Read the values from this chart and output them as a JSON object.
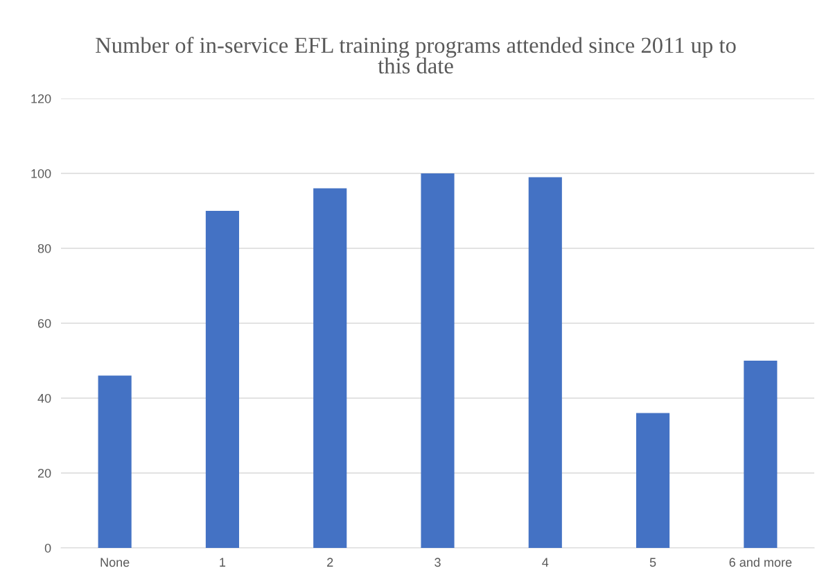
{
  "chart_data": {
    "type": "bar",
    "title": "Number of in-service EFL training programs attended since 2011 up to this date",
    "categories": [
      "None",
      "1",
      "2",
      "3",
      "4",
      "5",
      "6 and more"
    ],
    "values": [
      46,
      90,
      96,
      100,
      99,
      36,
      50
    ],
    "color": "#4472c4",
    "ylim": [
      0,
      120
    ],
    "yticks": [
      0,
      20,
      40,
      60,
      80,
      100,
      120
    ],
    "grid": "y"
  }
}
